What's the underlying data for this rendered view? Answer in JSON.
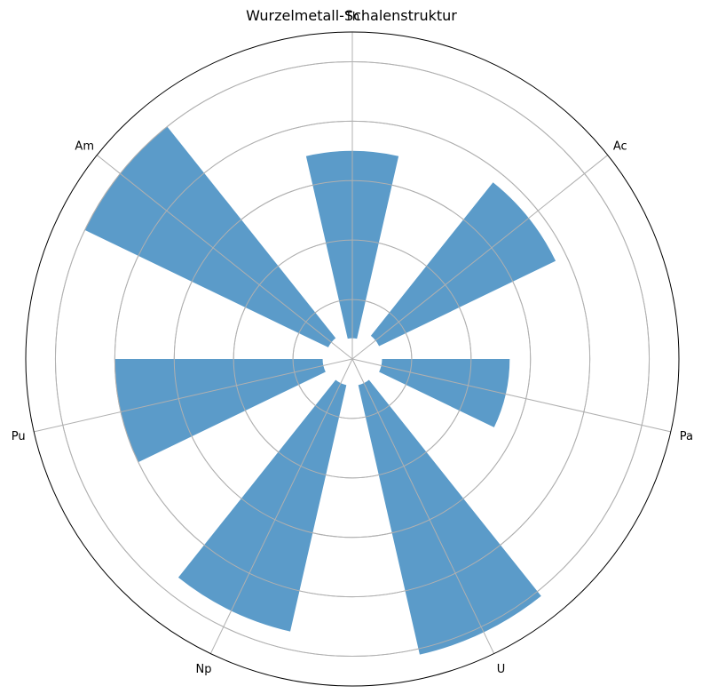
{
  "chart_data": {
    "type": "polar-bar",
    "title": "Wurzelmetall-Schalenstruktur",
    "categories": [
      "Th",
      "Ac",
      "Pa",
      "U",
      "Np",
      "Pu",
      "Am"
    ],
    "values": [
      7.0,
      7.6,
      5.3,
      10.2,
      9.4,
      8.0,
      10.0
    ],
    "bar_bottom": [
      0.7,
      1.0,
      1.0,
      0.9,
      0.9,
      1.0,
      0.9
    ],
    "rlim": [
      0,
      11.0
    ],
    "rticks": [
      2,
      4,
      6,
      8,
      10
    ],
    "direction": "clockwise",
    "zero_location": "top",
    "color": "#5b9bc9",
    "grid": true
  }
}
